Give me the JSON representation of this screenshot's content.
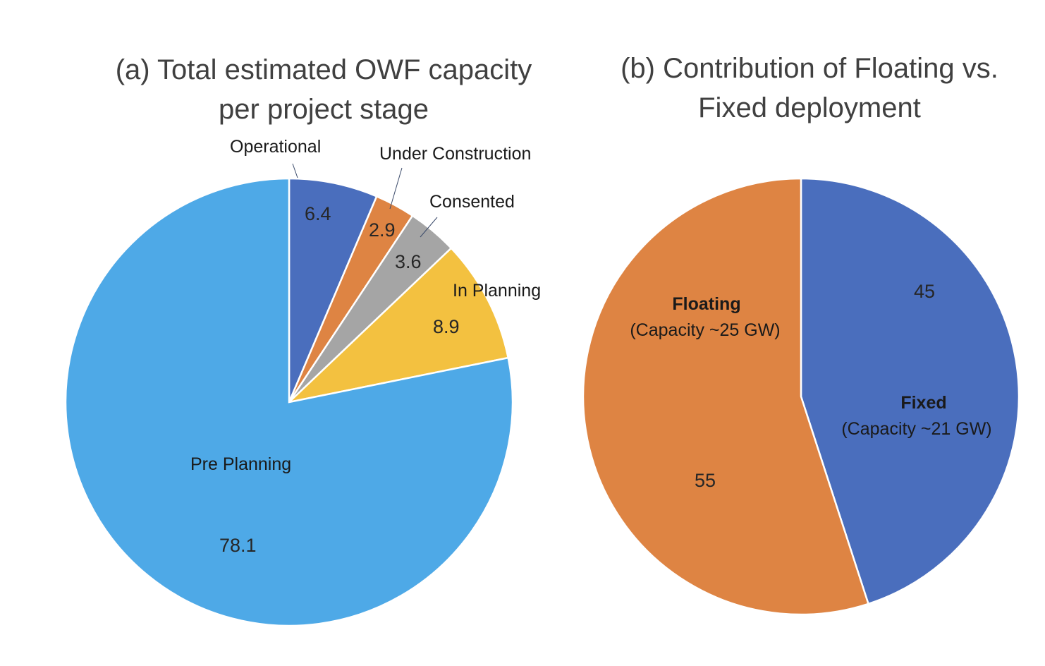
{
  "chart_data": [
    {
      "type": "pie",
      "title_line1": "(a) Total estimated OWF capacity",
      "title_line2": "per project stage",
      "start_angle": "12 o'clock",
      "direction": "clockwise",
      "categories": [
        "Operational",
        "Under Construction",
        "Consented",
        "In Planning",
        "Pre Planning"
      ],
      "values": [
        6.4,
        2.9,
        3.6,
        8.9,
        78.1
      ],
      "value_labels": [
        "6.4",
        "2.9",
        "3.6",
        "8.9",
        "78.1"
      ],
      "colors": [
        "#4A6EBD",
        "#DE8443",
        "#A5A5A5",
        "#F3C140",
        "#4EA9E7"
      ]
    },
    {
      "type": "pie",
      "title_line1": "(b) Contribution of Floating vs.",
      "title_line2": "Fixed deployment",
      "start_angle": "12 o'clock",
      "direction": "clockwise",
      "categories": [
        "Fixed",
        "Floating"
      ],
      "sublabels": [
        "(Capacity ~21 GW)",
        "(Capacity ~25 GW)"
      ],
      "values": [
        45,
        55
      ],
      "value_labels": [
        "45",
        "55"
      ],
      "colors": [
        "#4A6EBD",
        "#DE8443"
      ]
    }
  ]
}
